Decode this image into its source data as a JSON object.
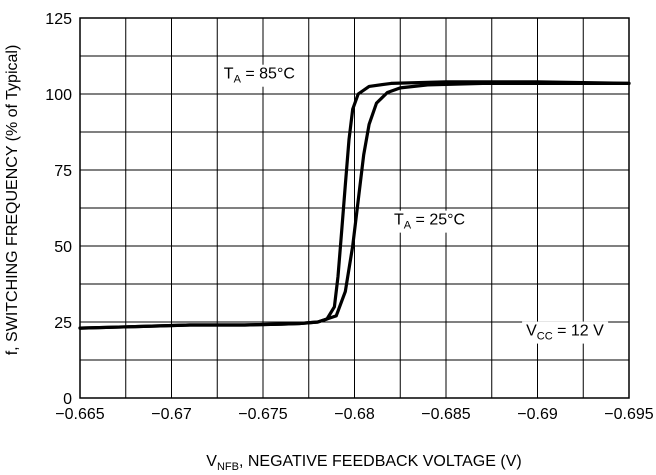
{
  "chart_data": {
    "type": "line",
    "xlabel_main": "V",
    "xlabel_sub": "NFB",
    "xlabel_rest": ", NEGATIVE FEEDBACK VOLTAGE (V)",
    "ylabel": "f, SWITCHING FREQUENCY (% of Typical)",
    "xlim": [
      -0.665,
      -0.695
    ],
    "ylim": [
      0,
      125
    ],
    "x_ticks": [
      -0.665,
      -0.67,
      -0.675,
      -0.68,
      -0.685,
      -0.69,
      -0.695
    ],
    "x_tick_labels": [
      "−0.665",
      "−0.67",
      "−0.675",
      "−0.68",
      "−0.685",
      "−0.69",
      "−0.695"
    ],
    "y_ticks": [
      0,
      25,
      50,
      75,
      100,
      125
    ],
    "y_tick_labels": [
      "0",
      "25",
      "50",
      "75",
      "100",
      "125"
    ],
    "grid": true,
    "series": [
      {
        "values": [
          {
            "x": -0.665,
            "y": 23
          },
          {
            "x": -0.668,
            "y": 23.5
          },
          {
            "x": -0.671,
            "y": 24
          },
          {
            "x": -0.674,
            "y": 24
          },
          {
            "x": -0.676,
            "y": 24.3
          },
          {
            "x": -0.677,
            "y": 24.5
          },
          {
            "x": -0.678,
            "y": 25
          },
          {
            "x": -0.6785,
            "y": 26
          },
          {
            "x": -0.6789,
            "y": 30
          },
          {
            "x": -0.6791,
            "y": 40
          },
          {
            "x": -0.6793,
            "y": 55
          },
          {
            "x": -0.6795,
            "y": 70
          },
          {
            "x": -0.6797,
            "y": 85
          },
          {
            "x": -0.6799,
            "y": 95
          },
          {
            "x": -0.6802,
            "y": 100
          },
          {
            "x": -0.6808,
            "y": 102.5
          },
          {
            "x": -0.682,
            "y": 103.5
          },
          {
            "x": -0.685,
            "y": 104
          },
          {
            "x": -0.69,
            "y": 104
          },
          {
            "x": -0.695,
            "y": 103.5
          }
        ]
      },
      {
        "values": [
          {
            "x": -0.665,
            "y": 23
          },
          {
            "x": -0.668,
            "y": 23.5
          },
          {
            "x": -0.671,
            "y": 24
          },
          {
            "x": -0.674,
            "y": 24
          },
          {
            "x": -0.676,
            "y": 24.3
          },
          {
            "x": -0.677,
            "y": 24.5
          },
          {
            "x": -0.678,
            "y": 25
          },
          {
            "x": -0.679,
            "y": 27
          },
          {
            "x": -0.6795,
            "y": 35
          },
          {
            "x": -0.6799,
            "y": 50
          },
          {
            "x": -0.6802,
            "y": 65
          },
          {
            "x": -0.6805,
            "y": 80
          },
          {
            "x": -0.6808,
            "y": 90
          },
          {
            "x": -0.6812,
            "y": 97
          },
          {
            "x": -0.6818,
            "y": 100.5
          },
          {
            "x": -0.6825,
            "y": 102
          },
          {
            "x": -0.684,
            "y": 103
          },
          {
            "x": -0.687,
            "y": 103.5
          },
          {
            "x": -0.69,
            "y": 103.5
          },
          {
            "x": -0.695,
            "y": 103.5
          }
        ]
      }
    ],
    "annotations": [
      {
        "main": "T",
        "sub": "A",
        "rest": " = 85°C",
        "x": -0.6748,
        "y": 107
      },
      {
        "main": "T",
        "sub": "A",
        "rest": " = 25°C",
        "x": -0.6841,
        "y": 59
      },
      {
        "main": "V",
        "sub": "CC",
        "rest": " = 12 V",
        "x": -0.6915,
        "y": 22.5
      }
    ]
  }
}
